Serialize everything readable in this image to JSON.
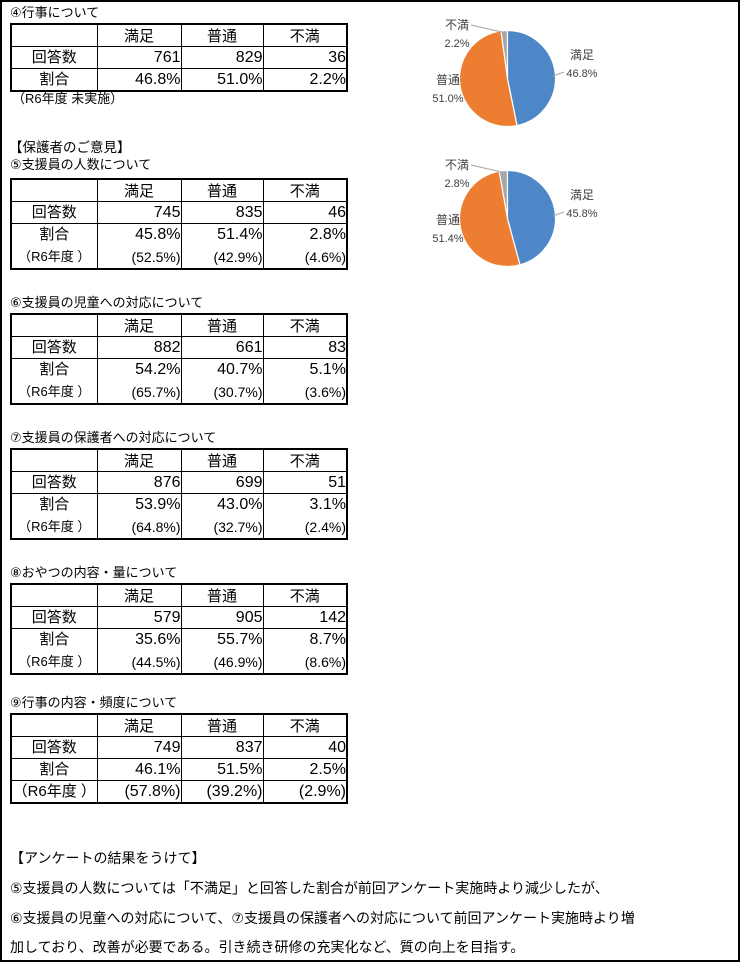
{
  "headings": {
    "parents_opinion": "【保護者のご意見】",
    "summary": "【アンケートの結果をうけて】"
  },
  "summary_lines": [
    "⑤支援員の人数については「不満足」と回答した割合が前回アンケート実施時より減少したが、",
    "⑥支援員の児童への対応について、⑦支援員の保護者への対応について前回アンケート実施時より増",
    "加しており、改善が必要である。引き続き研修の充実化など、質の向上を目指す。"
  ],
  "sections": [
    {
      "title": "④行事について",
      "note": "（R6年度 未実施）",
      "table": {
        "corner": "",
        "columns": [
          "満足",
          "普通",
          "不満"
        ],
        "rows": {
          "count": {
            "label": "回答数",
            "values": [
              "761",
              "829",
              "36"
            ]
          },
          "pct": {
            "label": "割合",
            "values": [
              "46.8%",
              "51.0%",
              "2.2%"
            ]
          }
        }
      }
    },
    {
      "title": "⑤支援員の人数について",
      "table": {
        "corner": "",
        "columns": [
          "満足",
          "普通",
          "不満"
        ],
        "rows": {
          "count": {
            "label": "回答数",
            "values": [
              "745",
              "835",
              "46"
            ]
          },
          "pct": {
            "label": "割合",
            "values": [
              "45.8%",
              "51.4%",
              "2.8%"
            ]
          },
          "r6": {
            "label": "（R6年度 ）",
            "values": [
              "(52.5%)",
              "(42.9%)",
              "(4.6%)"
            ]
          }
        }
      }
    },
    {
      "title": "⑥支援員の児童への対応について",
      "table": {
        "corner": "",
        "columns": [
          "満足",
          "普通",
          "不満"
        ],
        "rows": {
          "count": {
            "label": "回答数",
            "values": [
              "882",
              "661",
              "83"
            ]
          },
          "pct": {
            "label": "割合",
            "values": [
              "54.2%",
              "40.7%",
              "5.1%"
            ]
          },
          "r6": {
            "label": "（R6年度 ）",
            "values": [
              "(65.7%)",
              "(30.7%)",
              "(3.6%)"
            ]
          }
        }
      }
    },
    {
      "title": "⑦支援員の保護者への対応について",
      "table": {
        "corner": "",
        "columns": [
          "満足",
          "普通",
          "不満"
        ],
        "rows": {
          "count": {
            "label": "回答数",
            "values": [
              "876",
              "699",
              "51"
            ]
          },
          "pct": {
            "label": "割合",
            "values": [
              "53.9%",
              "43.0%",
              "3.1%"
            ]
          },
          "r6": {
            "label": "（R6年度 ）",
            "values": [
              "(64.8%)",
              "(32.7%)",
              "(2.4%)"
            ]
          }
        }
      }
    },
    {
      "title": "⑧おやつの内容・量について",
      "table": {
        "corner": "",
        "columns": [
          "満足",
          "普通",
          "不満"
        ],
        "rows": {
          "count": {
            "label": "回答数",
            "values": [
              "579",
              "905",
              "142"
            ]
          },
          "pct": {
            "label": "割合",
            "values": [
              "35.6%",
              "55.7%",
              "8.7%"
            ]
          },
          "r6": {
            "label": "（R6年度 ）",
            "values": [
              "(44.5%)",
              "(46.9%)",
              "(8.6%)"
            ]
          }
        }
      }
    },
    {
      "title": "⑨行事の内容・頻度について",
      "table": {
        "corner": "",
        "columns": [
          "満足",
          "普通",
          "不満"
        ],
        "rows": {
          "count": {
            "label": "回答数",
            "values": [
              "749",
              "837",
              "40"
            ]
          },
          "pct": {
            "label": "割合",
            "values": [
              "46.1%",
              "51.5%",
              "2.5%"
            ]
          },
          "r6": {
            "label": "（R6年度 ）",
            "values": [
              "(57.8%)",
              "(39.2%)",
              "(2.9%)"
            ]
          }
        }
      }
    }
  ],
  "chart_data": [
    {
      "type": "pie",
      "labels": [
        "満足",
        "普通",
        "不満"
      ],
      "values": [
        46.8,
        51.0,
        2.2
      ],
      "value_labels": [
        "46.8%",
        "51.0%",
        "2.2%"
      ],
      "colors": [
        "#4E87C8",
        "#ED7D31",
        "#A6A6A6"
      ],
      "label_color": "#404040",
      "start_angle_deg": -90,
      "direction": "clockwise",
      "legend": "none",
      "data_labels": "outside-with-leader-lines"
    },
    {
      "type": "pie",
      "labels": [
        "満足",
        "普通",
        "不満"
      ],
      "values": [
        45.8,
        51.4,
        2.8
      ],
      "value_labels": [
        "45.8%",
        "51.4%",
        "2.8%"
      ],
      "colors": [
        "#4E87C8",
        "#ED7D31",
        "#A6A6A6"
      ],
      "label_color": "#404040",
      "start_angle_deg": -90,
      "direction": "clockwise",
      "legend": "none",
      "data_labels": "outside-with-leader-lines"
    }
  ]
}
